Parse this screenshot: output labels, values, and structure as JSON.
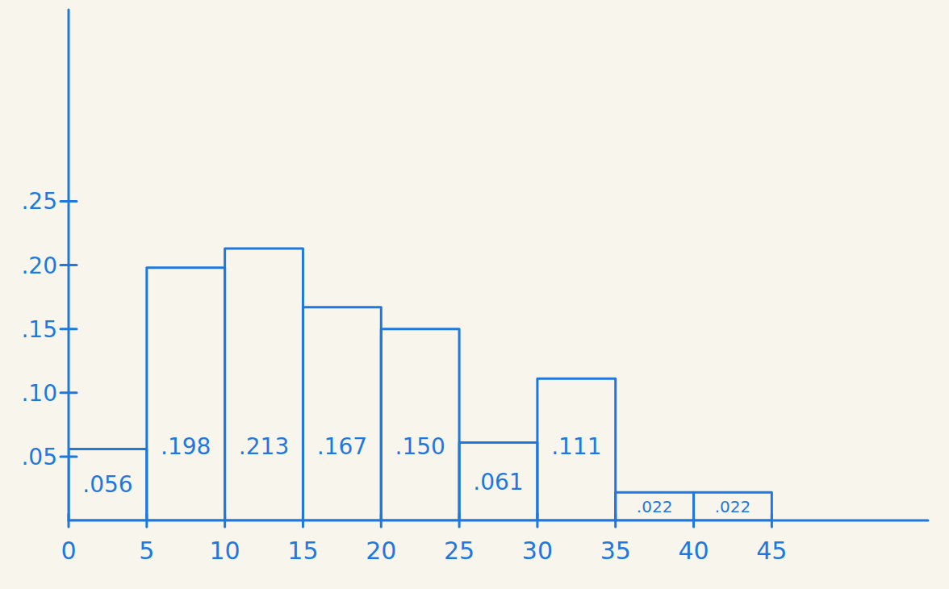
{
  "chart_data": {
    "type": "histogram",
    "bins": [
      0,
      5,
      10,
      15,
      20,
      25,
      30,
      35,
      40,
      45
    ],
    "values": [
      0.056,
      0.198,
      0.213,
      0.167,
      0.15,
      0.061,
      0.111,
      0.022,
      0.022
    ],
    "value_labels": [
      ".056",
      ".198",
      ".213",
      ".167",
      ".150",
      ".061",
      ".111",
      ".022",
      ".022"
    ],
    "color": "#1f78e0",
    "xlim": [
      0,
      55
    ],
    "xticks": [
      0,
      5,
      10,
      15,
      20,
      25,
      30,
      35,
      40,
      45
    ],
    "ylim": [
      0,
      0.4
    ],
    "yticks": [
      {
        "value": 0.05,
        "label": ".05"
      },
      {
        "value": 0.1,
        "label": ".10"
      },
      {
        "value": 0.15,
        "label": ".15"
      },
      {
        "value": 0.2,
        "label": ".20"
      },
      {
        "value": 0.25,
        "label": ".25"
      }
    ],
    "grid": false,
    "data_labels": true
  }
}
